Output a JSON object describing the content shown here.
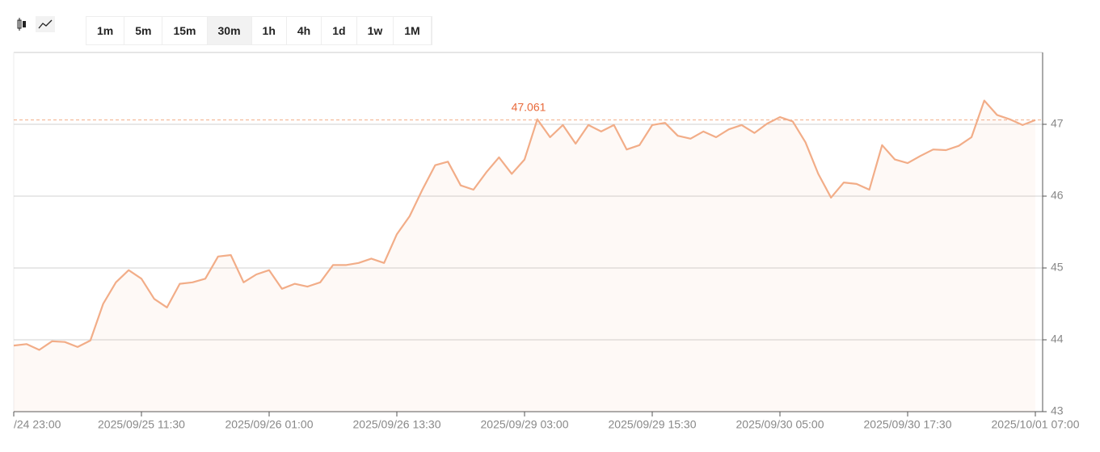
{
  "toolbar": {
    "intervals": [
      "1m",
      "5m",
      "15m",
      "30m",
      "1h",
      "4h",
      "1d",
      "1w",
      "1M"
    ],
    "selected_index": 3
  },
  "chart_data": {
    "type": "line",
    "categories": [
      "/24 23:00",
      null,
      null,
      null,
      null,
      null,
      null,
      null,
      null,
      null,
      "2025/09/25 11:30",
      null,
      null,
      null,
      null,
      null,
      null,
      null,
      null,
      null,
      "2025/09/26 01:00",
      null,
      null,
      null,
      null,
      null,
      null,
      null,
      null,
      null,
      "2025/09/26 13:30",
      null,
      null,
      null,
      null,
      null,
      null,
      null,
      null,
      null,
      "2025/09/29 03:00",
      null,
      null,
      null,
      null,
      null,
      null,
      null,
      null,
      null,
      "2025/09/29 15:30",
      null,
      null,
      null,
      null,
      null,
      null,
      null,
      null,
      null,
      "2025/09/30 05:00",
      null,
      null,
      null,
      null,
      null,
      null,
      null,
      null,
      null,
      "2025/09/30 17:30",
      null,
      null,
      null,
      null,
      null,
      null,
      null,
      null,
      null,
      "2025/10/01 07:00"
    ],
    "series": [
      {
        "color": "#f2ad88",
        "values": [
          43.92,
          43.94,
          43.86,
          43.98,
          43.97,
          43.9,
          43.99,
          44.5,
          44.8,
          44.97,
          44.85,
          44.57,
          44.45,
          44.78,
          44.8,
          44.85,
          45.16,
          45.18,
          44.8,
          44.91,
          44.97,
          44.71,
          44.78,
          44.74,
          44.8,
          45.04,
          45.04,
          45.07,
          45.13,
          45.07,
          45.47,
          45.72,
          46.09,
          46.43,
          46.48,
          46.15,
          46.09,
          46.33,
          46.54,
          46.31,
          46.51,
          47.07,
          46.82,
          46.99,
          46.73,
          46.99,
          46.9,
          46.99,
          46.65,
          46.71,
          46.99,
          47.02,
          46.84,
          46.8,
          46.9,
          46.82,
          46.93,
          46.99,
          46.88,
          47.01,
          47.1,
          47.04,
          46.75,
          46.31,
          45.98,
          46.19,
          46.17,
          46.09,
          46.71,
          46.51,
          46.46,
          46.56,
          46.65,
          46.64,
          46.7,
          46.82,
          47.33,
          47.13,
          47.07,
          46.99,
          47.06
        ]
      }
    ],
    "last_price": 47.061,
    "last_price_color": "#e8693a",
    "ylim": [
      43,
      48
    ],
    "yticks": [
      43,
      44,
      45,
      46,
      47
    ],
    "grid": true,
    "y_axis_side": "right"
  }
}
